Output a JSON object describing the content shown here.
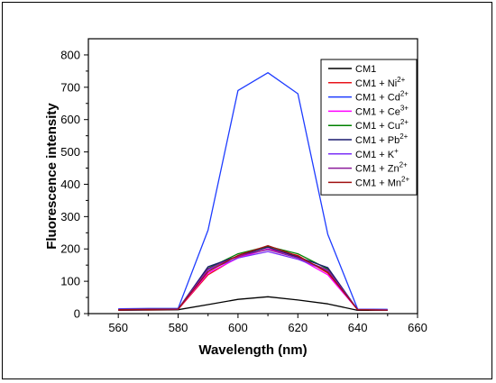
{
  "chart_data": {
    "type": "line",
    "title": "",
    "xlabel": "Wavelength (nm)",
    "ylabel": "Fluorescence intensity",
    "xlim": [
      550,
      660
    ],
    "ylim": [
      0,
      850
    ],
    "xticks": [
      560,
      580,
      600,
      620,
      640,
      660
    ],
    "yticks": [
      0,
      100,
      200,
      300,
      400,
      500,
      600,
      700,
      800
    ],
    "grid": false,
    "legend_position": "top-right",
    "x": [
      560,
      570,
      580,
      590,
      600,
      610,
      620,
      630,
      640,
      650
    ],
    "series": [
      {
        "name": "CM1",
        "legend_base": "CM1",
        "legend_sup": "",
        "color": "#000000",
        "values": [
          10,
          11,
          12,
          28,
          44,
          52,
          42,
          30,
          10,
          10
        ]
      },
      {
        "name": "CM1 + Ni2+",
        "legend_base": "CM1 + Ni",
        "legend_sup": "2+",
        "color": "#e8141c",
        "values": [
          11,
          12,
          13,
          120,
          175,
          200,
          180,
          125,
          12,
          11
        ]
      },
      {
        "name": "CM1 + Cd2+",
        "legend_base": "CM1 + Cd",
        "legend_sup": "2+",
        "color": "#1e3cff",
        "values": [
          15,
          16,
          16,
          258,
          690,
          745,
          680,
          245,
          14,
          13
        ]
      },
      {
        "name": "CM1 + Ce3+",
        "legend_base": "CM1 + Ce",
        "legend_sup": "3+",
        "color": "#ff00ff",
        "values": [
          12,
          13,
          14,
          125,
          172,
          200,
          172,
          120,
          12,
          11
        ]
      },
      {
        "name": "CM1 + Cu2+",
        "legend_base": "CM1 + Cu",
        "legend_sup": "2+",
        "color": "#008000",
        "values": [
          12,
          13,
          14,
          140,
          185,
          208,
          185,
          138,
          12,
          11
        ]
      },
      {
        "name": "CM1 + Pb2+",
        "legend_base": "CM1 + Pb",
        "legend_sup": "2+",
        "color": "#1a1a6e",
        "values": [
          12,
          13,
          14,
          145,
          178,
          205,
          175,
          142,
          12,
          11
        ]
      },
      {
        "name": "CM1 + K+",
        "legend_base": "CM1 + K",
        "legend_sup": "+",
        "color": "#7b2ff7",
        "values": [
          13,
          14,
          14,
          135,
          172,
          192,
          168,
          132,
          13,
          12
        ]
      },
      {
        "name": "CM1 + Zn2+",
        "legend_base": "CM1 + Zn",
        "legend_sup": "2+",
        "color": "#8b1a9a",
        "values": [
          12,
          13,
          14,
          138,
          178,
          198,
          172,
          135,
          12,
          11
        ]
      },
      {
        "name": "CM1 + Mn2+",
        "legend_base": "CM1 + Mn",
        "legend_sup": "2+",
        "color": "#a01010",
        "values": [
          12,
          13,
          14,
          130,
          180,
          210,
          178,
          128,
          12,
          11
        ]
      }
    ]
  }
}
